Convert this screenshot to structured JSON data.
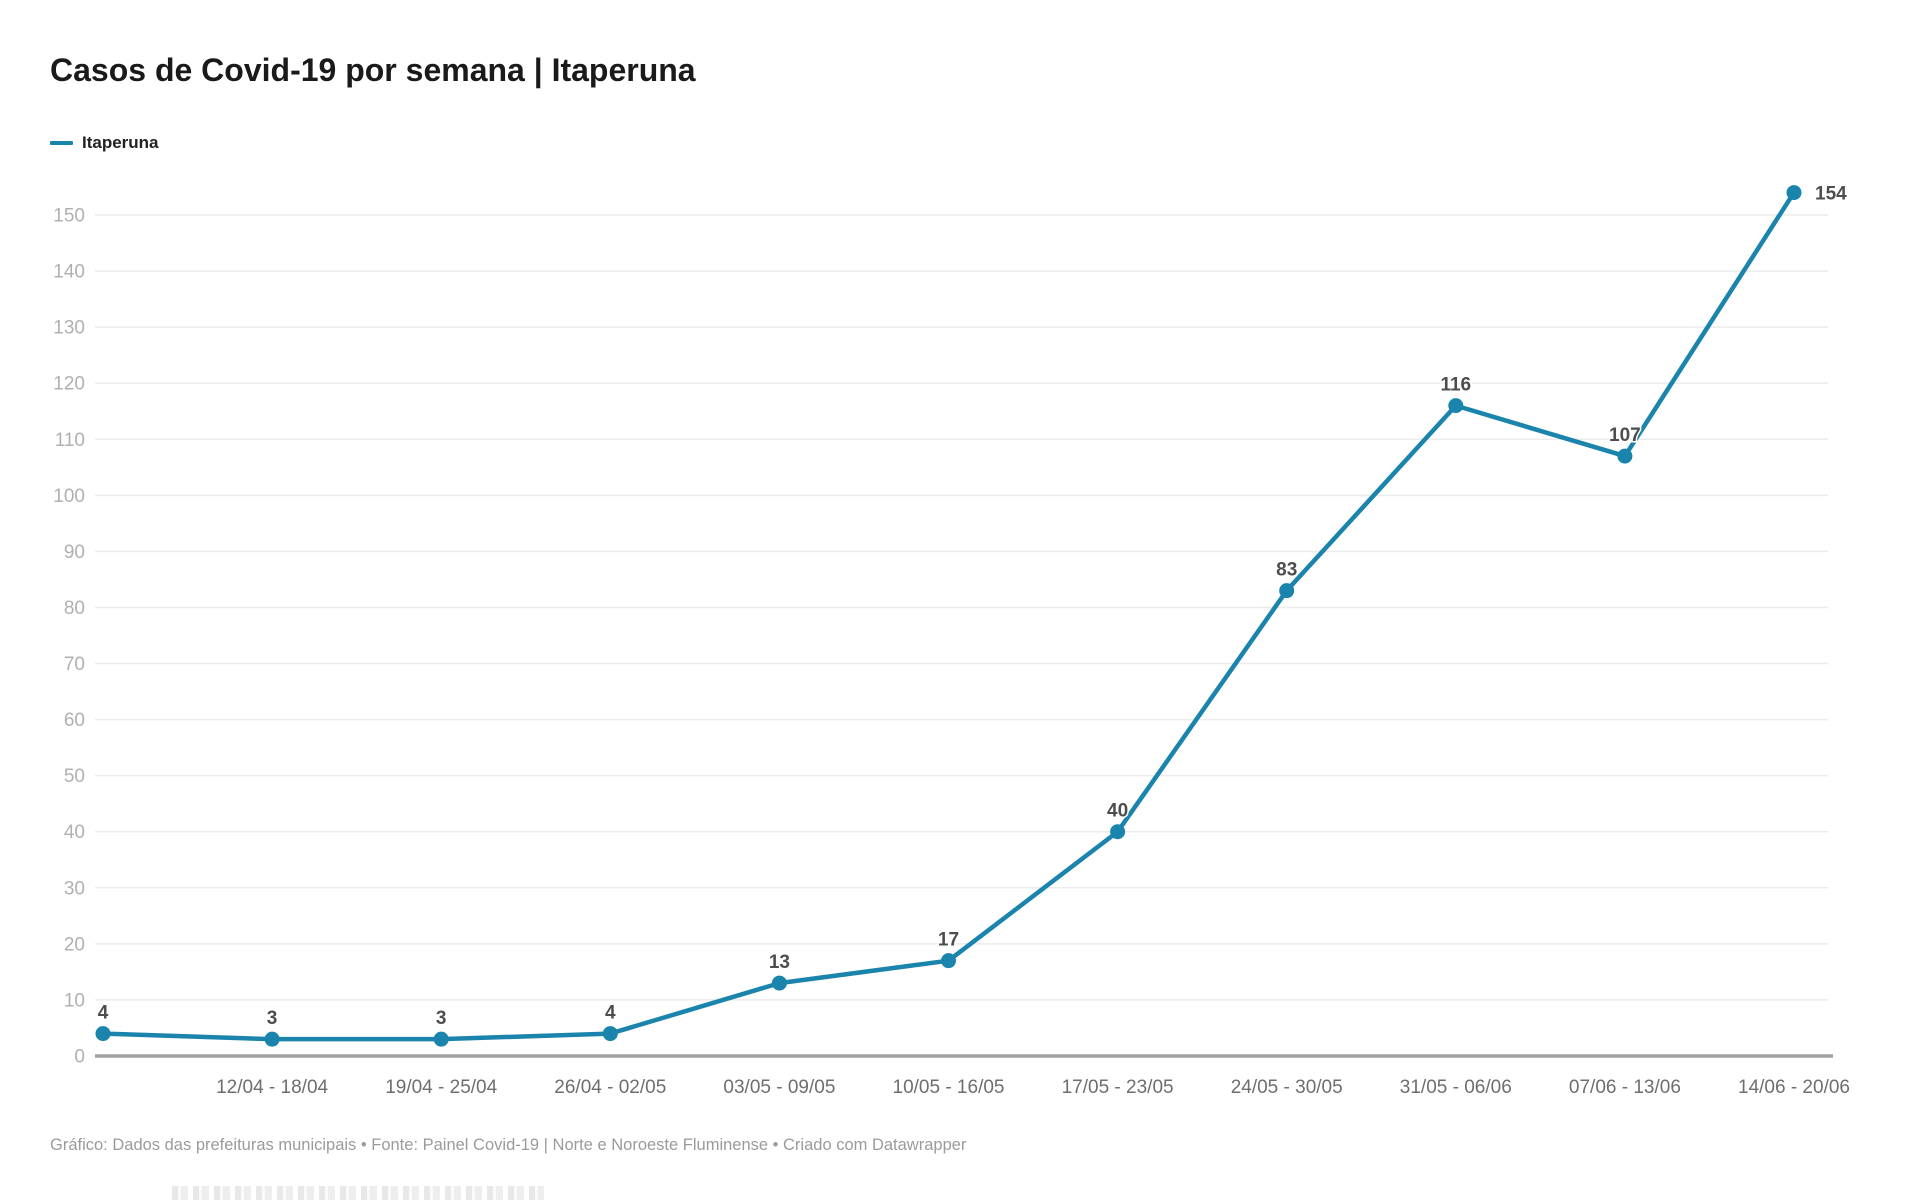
{
  "header": {
    "title": "Casos de Covid-19 por semana | Itaperuna"
  },
  "legend": {
    "label": "Itaperuna"
  },
  "colors": {
    "accent": "#1a84ad",
    "gridline": "#ececec",
    "axis_baseline": "#a0a0a0",
    "value_label": "#4d4d4d",
    "x_tick": "#6e6e6e",
    "y_tick": "#b0b0b0",
    "footer_text": "#9b9b9b"
  },
  "chart_data": {
    "type": "line",
    "title": "Casos de Covid-19 por semana | Itaperuna",
    "categories": [
      "",
      "12/04 - 18/04",
      "19/04 - 25/04",
      "26/04 - 02/05",
      "03/05 - 09/05",
      "10/05 - 16/05",
      "17/05 - 23/05",
      "24/05 - 30/05",
      "31/05 - 06/06",
      "07/06 - 13/06",
      "14/06 - 20/06"
    ],
    "series": [
      {
        "name": "Itaperuna",
        "values": [
          4,
          3,
          3,
          4,
          13,
          17,
          40,
          83,
          116,
          107,
          154
        ]
      }
    ],
    "xlabel": "",
    "ylabel": "",
    "ylim": [
      0,
      150
    ],
    "ytick_step": 10,
    "grid": "horizontal",
    "legend_position": "top-left",
    "value_labels_shown": true,
    "first_category_label_hidden": true
  },
  "footer": {
    "text": "Gráfico: Dados das prefeituras municipais • Fonte: Painel Covid-19 | Norte e Noroeste Fluminense • Criado com Datawrapper"
  }
}
